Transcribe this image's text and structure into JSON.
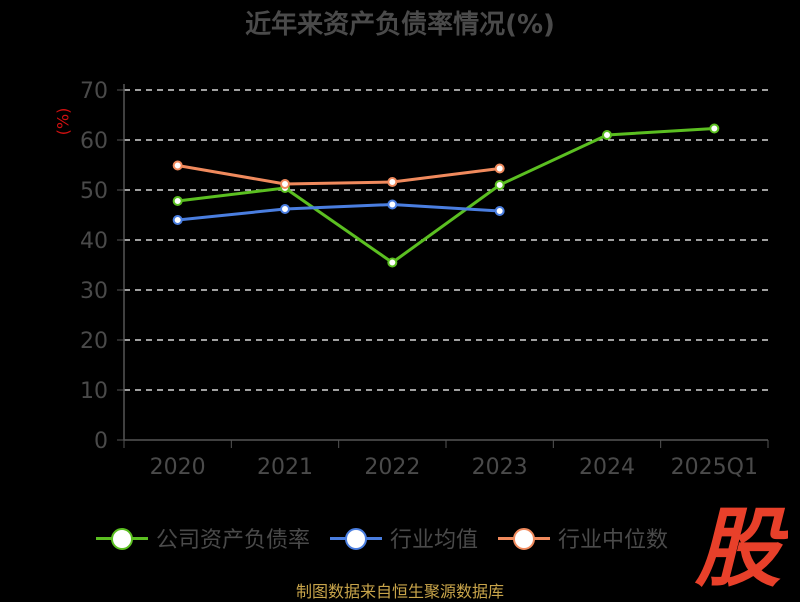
{
  "chart_data": {
    "type": "line",
    "title": "近年来资产负债率情况(%)",
    "ylabel": "(%)",
    "categories": [
      "2020",
      "2021",
      "2022",
      "2023",
      "2024",
      "2025Q1"
    ],
    "ylim": [
      0,
      70
    ],
    "yticks": [
      0,
      10,
      20,
      30,
      40,
      50,
      60,
      70
    ],
    "grid": true,
    "legend_position": "bottom",
    "series": [
      {
        "name": "公司资产负债率",
        "color": "#5bbf21",
        "values": [
          47.8,
          50.4,
          35.5,
          51.0,
          61.0,
          62.3
        ]
      },
      {
        "name": "行业均值",
        "color": "#4a7ee0",
        "values": [
          44.0,
          46.2,
          47.1,
          45.8,
          null,
          null
        ]
      },
      {
        "name": "行业中位数",
        "color": "#f08a5d",
        "values": [
          54.9,
          51.2,
          51.6,
          54.3,
          null,
          null
        ]
      }
    ]
  },
  "source_text": "制图数据来自恒生聚源数据库",
  "logo_text": "股"
}
